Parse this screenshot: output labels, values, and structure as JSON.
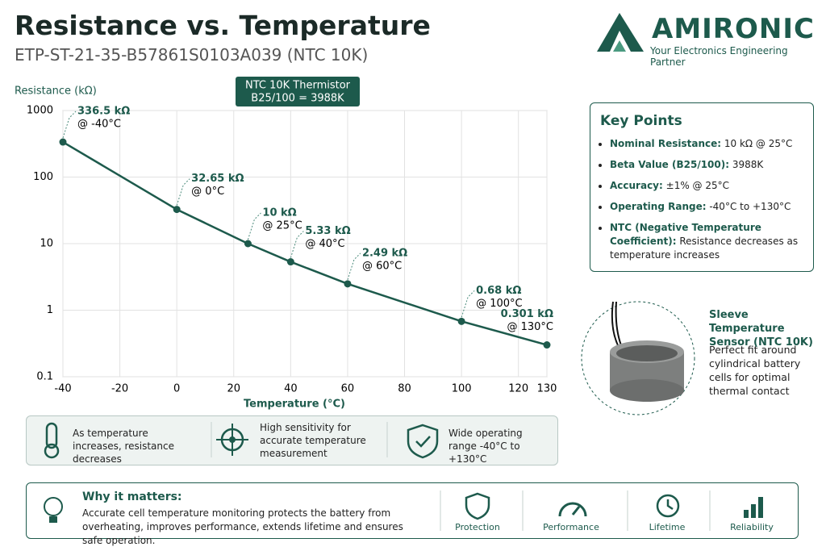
{
  "chart_data": {
    "type": "line",
    "title": "Resistance vs. Temperature",
    "subtitle": "ETP-ST-21-35-B57861S0103A039 (NTC 10K)",
    "y_label": "Resistance (kΩ)",
    "x_label": "Temperature (°C)",
    "annotation": [
      "NTC 10K Thermistor",
      "B25/100 = 3988K"
    ],
    "x": [
      -40,
      0,
      25,
      40,
      60,
      100,
      130
    ],
    "series": [
      {
        "name": "NTC 10K",
        "color": "#1d5a4c",
        "values": [
          336.5,
          32.65,
          10,
          5.33,
          2.49,
          0.68,
          0.301
        ],
        "value_labels": [
          "336.5 kΩ",
          "32.65 kΩ",
          "10 kΩ",
          "5.33 kΩ",
          "2.49 kΩ",
          "0.68 kΩ",
          "0.301 kΩ"
        ],
        "x_labels": [
          "@ -40°C",
          "@ 0°C",
          "@ 25°C",
          "@ 40°C",
          "@ 60°C",
          "@ 100°C",
          "@ 130°C"
        ]
      }
    ],
    "xlim": [
      -40,
      130
    ],
    "xticks": [
      -40,
      -20,
      0,
      20,
      40,
      60,
      80,
      100,
      120,
      130
    ],
    "ylim": [
      0.1,
      1000
    ],
    "yticks": [
      0.1,
      1,
      10,
      100,
      1000
    ],
    "log_y": true,
    "grid": true
  },
  "brand": {
    "name": "AMIRONIC",
    "tagline": "Your Electronics Engineering Partner"
  },
  "key_points": {
    "title": "Key Points",
    "items": [
      {
        "label": "Nominal Resistance:",
        "text": "10 kΩ @ 25°C"
      },
      {
        "label": "Beta Value (B25/100):",
        "text": "3988K"
      },
      {
        "label": "Accuracy:",
        "text": "±1% @ 25°C"
      },
      {
        "label": "Operating Range:",
        "text": "-40°C to +130°C"
      },
      {
        "label": "NTC (Negative Temperature Coefficient):",
        "text": "Resistance decreases as temperature increases"
      }
    ]
  },
  "sensor": {
    "title": "Sleeve Temperature Sensor (NTC 10K)",
    "text": "Perfect fit around cylindrical battery cells for optimal thermal contact"
  },
  "features": [
    "As temperature increases, resistance decreases",
    "High sensitivity for accurate temperature measurement",
    "Wide operating range -40°C to +130°C"
  ],
  "why": {
    "title": "Why it matters:",
    "text": "Accurate cell temperature monitoring protects the battery from overheating, improves performance, extends lifetime and ensures safe operation.",
    "benefits": [
      "Protection",
      "Performance",
      "Lifetime",
      "Reliability"
    ]
  }
}
